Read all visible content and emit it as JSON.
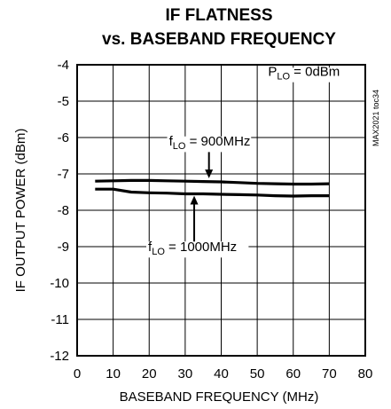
{
  "chart_data": {
    "type": "line",
    "title": "IF FLATNESS",
    "subtitle": "vs. BASEBAND FREQUENCY",
    "xlabel": "BASEBAND FREQUENCY (MHz)",
    "ylabel": "IF OUTPUT POWER (dBm)",
    "xlim": [
      0,
      80
    ],
    "ylim": [
      -12,
      -4
    ],
    "xticks": [
      "0",
      "10",
      "20",
      "30",
      "40",
      "50",
      "60",
      "70",
      "80"
    ],
    "yticks": [
      "-4",
      "-5",
      "-6",
      "-7",
      "-8",
      "-9",
      "-10",
      "-11",
      "-12"
    ],
    "grid": true,
    "legend_note": {
      "prefix": "P",
      "sub": "LO",
      "suffix": " = 0dBm"
    },
    "figure_id": "MAX2021 toc34",
    "series": [
      {
        "name": "fLO = 900MHz",
        "label_prefix": "f",
        "label_sub": "LO",
        "label_suffix": " = 900MHz",
        "x": [
          5,
          10,
          15,
          20,
          25,
          30,
          35,
          40,
          45,
          50,
          55,
          60,
          65,
          70
        ],
        "y": [
          -7.2,
          -7.19,
          -7.18,
          -7.18,
          -7.19,
          -7.2,
          -7.21,
          -7.22,
          -7.24,
          -7.26,
          -7.27,
          -7.28,
          -7.28,
          -7.27
        ]
      },
      {
        "name": "fLO = 1000MHz",
        "label_prefix": "f",
        "label_sub": "LO",
        "label_suffix": " = 1000MHz",
        "x": [
          5,
          10,
          15,
          20,
          25,
          30,
          35,
          40,
          45,
          50,
          55,
          60,
          65,
          70
        ],
        "y": [
          -7.42,
          -7.42,
          -7.5,
          -7.52,
          -7.53,
          -7.55,
          -7.55,
          -7.56,
          -7.57,
          -7.58,
          -7.6,
          -7.61,
          -7.6,
          -7.6
        ]
      }
    ]
  }
}
